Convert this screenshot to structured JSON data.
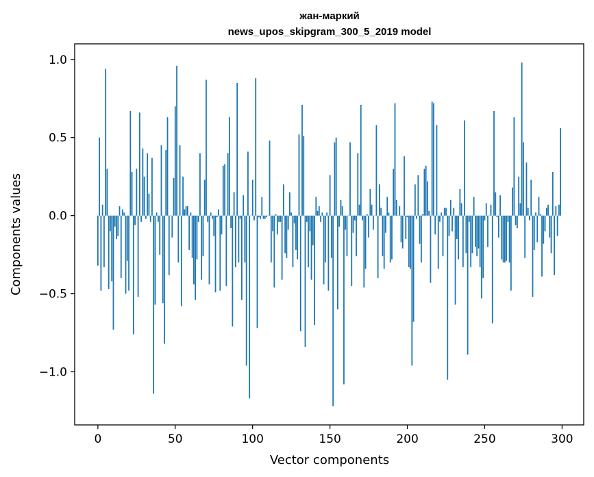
{
  "chart_data": {
    "type": "bar",
    "title_lines": [
      "жан-маркий",
      "news_upos_skipgram_300_5_2019 model"
    ],
    "xlabel": "Vector components",
    "ylabel": "Components values",
    "xlim": [
      -15,
      314
    ],
    "ylim": [
      -1.34,
      1.1
    ],
    "xticks": [
      0,
      50,
      100,
      150,
      200,
      250,
      300
    ],
    "xtick_labels": [
      "0",
      "50",
      "100",
      "150",
      "200",
      "250",
      "300"
    ],
    "yticks": [
      -1.0,
      -0.5,
      0.0,
      0.5,
      1.0
    ],
    "ytick_labels": [
      "−1.0",
      "−0.5",
      "0.0",
      "0.5",
      "1.0"
    ],
    "grid": false,
    "bar_color": "#1f77b4",
    "values": [
      -0.32,
      0.5,
      -0.48,
      0.07,
      -0.33,
      0.94,
      0.3,
      -0.47,
      -0.1,
      -0.42,
      -0.73,
      -0.07,
      -0.15,
      -0.13,
      0.06,
      -0.4,
      0.04,
      0.02,
      -0.5,
      -0.29,
      -0.48,
      0.67,
      0.28,
      -0.76,
      -0.06,
      0.3,
      -0.52,
      0.66,
      -0.04,
      0.43,
      0.25,
      -0.02,
      0.4,
      0.14,
      -0.04,
      0.37,
      -1.14,
      -0.57,
      0.02,
      -0.04,
      -0.25,
      0.45,
      -0.56,
      -0.82,
      0.42,
      0.63,
      -0.38,
      0.0,
      -0.14,
      0.24,
      0.7,
      0.96,
      -0.3,
      0.45,
      -0.58,
      0.25,
      0.04,
      0.06,
      0.06,
      -0.22,
      0.02,
      -0.27,
      -0.44,
      -0.54,
      -0.28,
      -0.04,
      0.4,
      -0.41,
      -0.26,
      0.23,
      0.87,
      -0.04,
      -0.44,
      0.02,
      -0.02,
      -0.13,
      -0.49,
      -0.01,
      0.04,
      -0.48,
      -0.12,
      0.32,
      0.33,
      -0.45,
      0.4,
      0.63,
      -0.08,
      -0.71,
      0.15,
      -0.33,
      0.85,
      -0.3,
      -0.02,
      -0.54,
      0.13,
      -0.3,
      -0.96,
      0.41,
      -1.17,
      0.0,
      0.23,
      -0.03,
      0.88,
      -0.72,
      -0.01,
      -0.02,
      0.12,
      -0.02,
      -0.02,
      -0.01,
      0.0,
      0.48,
      -0.3,
      -0.1,
      -0.46,
      0.01,
      -0.12,
      -0.04,
      -0.04,
      -0.41,
      0.2,
      -0.24,
      -0.27,
      -0.09,
      0.15,
      0.02,
      -0.33,
      -0.05,
      -0.22,
      -0.28,
      0.52,
      -0.74,
      0.71,
      0.51,
      -0.84,
      -0.04,
      -0.33,
      -0.1,
      -0.41,
      -0.19,
      -0.7,
      0.12,
      0.03,
      0.06,
      -0.04,
      0.02,
      -0.44,
      -0.3,
      0.02,
      -0.48,
      0.26,
      -0.27,
      -1.22,
      0.47,
      0.5,
      -0.6,
      -0.07,
      0.1,
      0.06,
      -1.08,
      -0.09,
      -0.26,
      0.0,
      0.47,
      -0.45,
      -0.11,
      -0.03,
      -0.26,
      0.4,
      0.07,
      0.71,
      -0.03,
      -0.46,
      -0.34,
      0.01,
      -0.14,
      0.17,
      0.07,
      -0.09,
      0.0,
      0.58,
      -0.4,
      0.2,
      0.05,
      -0.26,
      -0.34,
      -0.11,
      0.12,
      0.02,
      -0.3,
      -0.28,
      0.3,
      0.72,
      0.1,
      0.0,
      0.06,
      -0.17,
      -0.21,
      0.38,
      -0.15,
      -0.01,
      -0.33,
      -0.34,
      -0.96,
      -0.68,
      0.2,
      -0.02,
      0.26,
      -0.18,
      -0.3,
      0.01,
      0.3,
      0.32,
      0.22,
      0.03,
      -0.43,
      0.73,
      0.72,
      -0.12,
      0.58,
      -0.34,
      -0.04,
      0.02,
      -0.26,
      0.05,
      0.05,
      -1.05,
      -0.13,
      0.1,
      -0.1,
      0.05,
      -0.57,
      -0.15,
      -0.28,
      0.17,
      0.08,
      -0.33,
      0.61,
      -0.24,
      -0.89,
      -0.04,
      -0.33,
      -0.24,
      0.12,
      -0.2,
      -0.26,
      -0.21,
      -0.33,
      -0.53,
      -0.4,
      -0.03,
      0.08,
      -0.2,
      0.0,
      0.07,
      -0.69,
      0.67,
      0.15,
      -0.01,
      -0.14,
      0.13,
      -0.28,
      -0.3,
      -0.3,
      -0.29,
      -0.04,
      -0.3,
      -0.48,
      0.18,
      0.63,
      -0.06,
      -0.08,
      0.25,
      0.08,
      0.98,
      0.47,
      -0.27,
      0.34,
      0.05,
      -0.03,
      0.23,
      -0.52,
      -0.22,
      0.02,
      -0.17,
      0.12,
      0.01,
      -0.39,
      -0.18,
      -0.1,
      0.05,
      0.07,
      -0.14,
      -0.24,
      0.28,
      -0.38,
      0.06,
      -0.13,
      0.07,
      0.56
    ]
  }
}
